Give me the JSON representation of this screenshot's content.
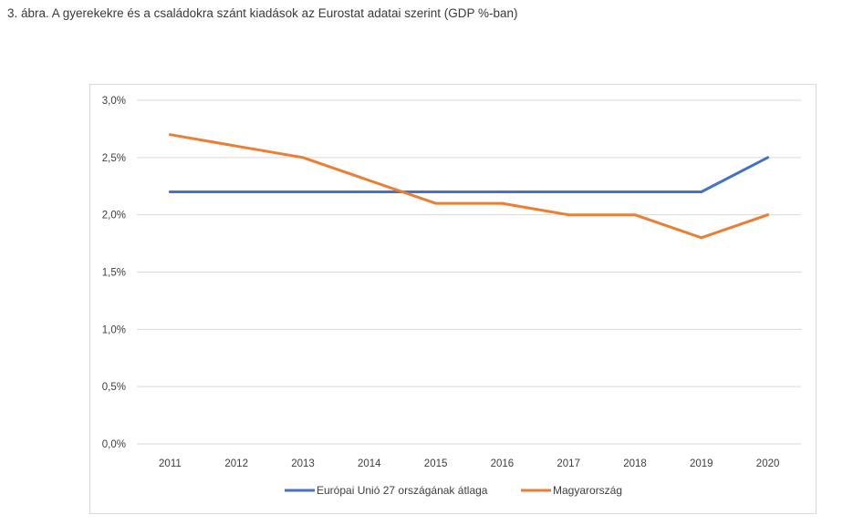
{
  "caption": "3. ábra. A gyerekekre és a családokra szánt kiadások az Eurostat adatai szerint (GDP %-ban)",
  "colors": {
    "eu": "#4472C4",
    "hu": "#ED7D31",
    "grid": "#d9d9d9"
  },
  "chart_data": {
    "type": "line",
    "title": "",
    "xlabel": "",
    "ylabel": "",
    "x": [
      "2011",
      "2012",
      "2013",
      "2014",
      "2015",
      "2016",
      "2017",
      "2018",
      "2019",
      "2020"
    ],
    "ylim": [
      0,
      3.0
    ],
    "yticks": [
      0,
      0.5,
      1.0,
      1.5,
      2.0,
      2.5,
      3.0
    ],
    "ytick_labels": [
      "0,0%",
      "0,5%",
      "1,0%",
      "1,5%",
      "2,0%",
      "2,5%",
      "3,0%"
    ],
    "grid": true,
    "legend_position": "bottom",
    "series": [
      {
        "name": "Európai Unió 27 országának átlaga",
        "values": [
          2.2,
          2.2,
          2.2,
          2.2,
          2.2,
          2.2,
          2.2,
          2.2,
          2.2,
          2.5
        ]
      },
      {
        "name": "Magyarország",
        "values": [
          2.7,
          2.6,
          2.5,
          2.3,
          2.1,
          2.1,
          2.0,
          2.0,
          1.8,
          2.0
        ]
      }
    ]
  }
}
